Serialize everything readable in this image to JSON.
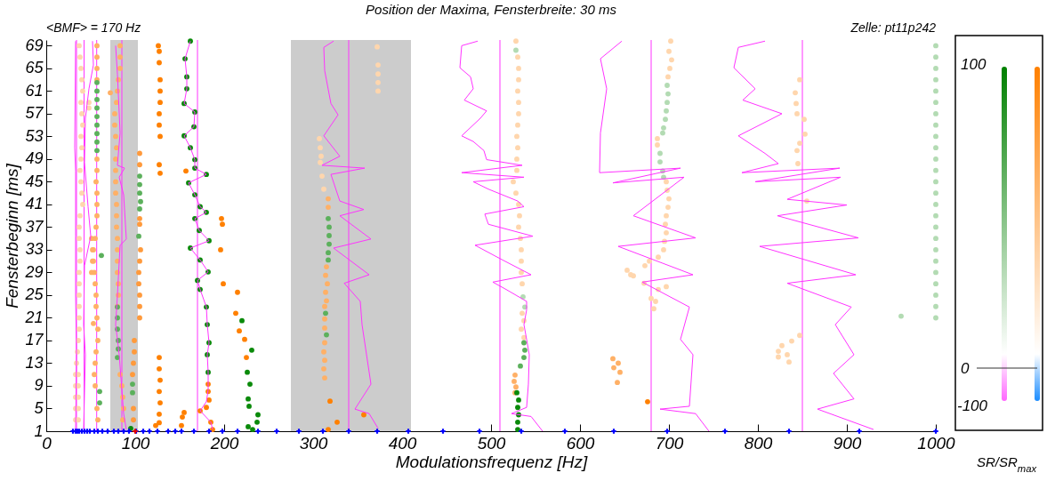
{
  "chart_data": {
    "type": "scatter",
    "title": "Position der Maxima, Fensterbreite: 30 ms",
    "xlabel": "Modulationsfrequenz [Hz]",
    "ylabel": "Fensterbeginn [ms]",
    "annotations": [
      "<BMF> = 170 Hz",
      "Zelle: pt11p242",
      "100",
      "0",
      "-100",
      "SR/SR$_{max}$"
    ],
    "xlim": [
      0,
      1000
    ],
    "ylim": [
      1,
      70
    ],
    "xticks": [
      0,
      100,
      200,
      300,
      400,
      500,
      600,
      700,
      800,
      900,
      1000
    ],
    "yticks": [
      1,
      5,
      9,
      13,
      17,
      21,
      25,
      29,
      33,
      37,
      41,
      45,
      49,
      53,
      57,
      61,
      65,
      69
    ],
    "bands": [
      {
        "axis": "x",
        "from": 72,
        "to": 103,
        "color": "#cccccc"
      },
      {
        "axis": "x",
        "from": 275,
        "to": 410,
        "color": "#cccccc"
      }
    ],
    "ref_lines": [
      {
        "axis": "x",
        "value": 34,
        "color": "#ff33ff"
      },
      {
        "axis": "x",
        "value": 42.5,
        "color": "#ff33ff"
      },
      {
        "axis": "x",
        "value": 56.7,
        "color": "#ff33ff"
      },
      {
        "axis": "x",
        "value": 85,
        "color": "#ff33ff"
      },
      {
        "axis": "x",
        "value": 170,
        "color": "#ff33ff"
      },
      {
        "axis": "x",
        "value": 340,
        "color": "#ff33ff"
      },
      {
        "axis": "x",
        "value": 510,
        "color": "#ff33ff"
      },
      {
        "axis": "x",
        "value": 680,
        "color": "#ff33ff"
      },
      {
        "axis": "x",
        "value": 850,
        "color": "#ff33ff"
      }
    ],
    "series": [
      {
        "marker": "circle",
        "color": "#ffd6ad",
        "x": [
          37,
          38,
          39,
          40,
          41,
          39,
          40,
          41,
          39,
          40,
          39,
          38,
          39,
          40,
          41,
          38,
          37,
          37,
          38,
          38,
          37,
          37,
          37,
          37,
          37,
          37,
          36,
          35,
          34,
          33,
          33,
          33,
          33,
          33,
          36,
          36,
          36,
          36,
          36,
          48,
          48,
          307,
          308,
          309,
          308,
          310,
          312,
          372,
          373,
          373,
          373,
          373,
          528,
          530,
          531,
          531,
          530,
          531,
          531,
          530,
          529,
          530,
          529,
          529,
          525,
          528,
          531,
          532,
          531,
          533,
          534,
          534,
          534,
          535,
          535,
          537,
          534,
          537,
          702,
          700,
          703,
          701,
          699,
          687,
          687,
          697,
          698,
          700,
          699,
          697,
          696,
          697,
          695,
          694,
          688,
          678,
          673,
          653,
          657,
          660,
          672,
          697,
          688,
          680,
          685,
          683,
          847,
          842,
          843,
          844,
          852,
          853,
          847,
          844,
          845,
          855,
          847,
          838,
          827,
          823,
          833,
          823,
          835
        ],
        "values": [
          69,
          67,
          65,
          63,
          61,
          59,
          57,
          55,
          53,
          51,
          49,
          47,
          45,
          43,
          41,
          39,
          37,
          35,
          33,
          31,
          29,
          27,
          25,
          23,
          21,
          19,
          17,
          15,
          13,
          11,
          9,
          7,
          5,
          3,
          11,
          9,
          7,
          5,
          3,
          59,
          58,
          52.6,
          51,
          49.5,
          48.4,
          46,
          43.7,
          68.8,
          65.6,
          64,
          62.5,
          61,
          69.8,
          67,
          65,
          63,
          61,
          59,
          57,
          55,
          53,
          51,
          49,
          47,
          45,
          43,
          41,
          39,
          37,
          35,
          33,
          31,
          29,
          27,
          21.8,
          20.5,
          19,
          17.5,
          69.8,
          68,
          66.5,
          65,
          63.5,
          52.6,
          51.5,
          45,
          43.5,
          42,
          40.5,
          39,
          37.5,
          36,
          34.5,
          33,
          31.7,
          31,
          30.2,
          29.4,
          28.6,
          28.4,
          27.1,
          26.5,
          26,
          24.4,
          23.9,
          22.6,
          63,
          60.7,
          58.8,
          57,
          56,
          53.4,
          51.8,
          50.5,
          48.2,
          41.6,
          17.9,
          16.9,
          16.1,
          15.1,
          14.5,
          14.1,
          13.2
        ]
      },
      {
        "marker": "circle",
        "color": "#ffb066",
        "x": [
          51,
          52,
          52,
          51,
          53,
          57,
          57,
          57,
          57,
          57,
          57,
          56,
          57,
          57,
          57,
          56,
          55,
          53,
          53,
          54,
          55,
          56,
          56,
          57,
          58,
          58,
          56,
          55,
          54,
          55,
          57,
          58,
          83,
          83,
          83,
          81,
          80,
          79,
          77,
          77,
          78,
          79,
          78,
          78,
          78,
          78,
          79,
          79,
          79,
          80,
          80,
          80,
          80,
          81,
          81,
          80,
          83,
          85,
          86,
          87,
          86,
          72,
          317,
          317,
          315,
          314,
          316,
          314,
          315,
          313,
          313,
          313,
          313,
          312,
          313,
          312,
          313,
          527,
          526,
          528,
          527,
          637,
          643,
          638,
          645,
          642
        ],
        "values": [
          35,
          33,
          31,
          29,
          20,
          69,
          67,
          65,
          63,
          49,
          47,
          45,
          43,
          41,
          39,
          37,
          35,
          33,
          31,
          29,
          27,
          25,
          23,
          21,
          19,
          17,
          15,
          13,
          11,
          9,
          5,
          3,
          69,
          67,
          65,
          63,
          61,
          59,
          57,
          55,
          53,
          51,
          49,
          47,
          45,
          43,
          41,
          39,
          37,
          35,
          33,
          31,
          29,
          27,
          25,
          23,
          11,
          9,
          7,
          5,
          3,
          60.7,
          42,
          40.5,
          30,
          28.5,
          27,
          25.5,
          24,
          23,
          20.8,
          19.2,
          16.6,
          15,
          13.5,
          12,
          10.4,
          10.9,
          9.8,
          8.8,
          7.8,
          13.8,
          13,
          12.2,
          11.4,
          9.6
        ]
      },
      {
        "marker": "circle",
        "color": "#ff9a3c",
        "x": [
          105,
          105,
          105,
          105,
          106,
          105,
          104,
          104,
          105,
          105,
          105,
          99,
          99,
          98,
          97,
          98,
          98
        ],
        "values": [
          50,
          48,
          38.5,
          37.5,
          33,
          31,
          29,
          27,
          25,
          23,
          21,
          17,
          15,
          13,
          11,
          5,
          3
        ]
      },
      {
        "marker": "circle",
        "color": "#ff8000",
        "x": [
          126,
          127,
          127,
          128,
          128,
          128,
          127,
          127,
          128,
          127,
          128,
          127,
          127,
          128,
          127,
          128,
          127,
          127,
          123,
          153,
          152,
          155,
          157,
          182,
          182,
          183,
          180,
          173,
          185,
          187,
          197,
          198,
          196,
          199,
          215,
          213,
          217,
          223,
          225,
          319,
          357,
          327,
          317,
          676
        ],
        "values": [
          69,
          68,
          66,
          63,
          61,
          59,
          57,
          55,
          53,
          48,
          46.5,
          14,
          12,
          10,
          8,
          6,
          4,
          2.5,
          2,
          3.5,
          2,
          4.3,
          46.9,
          9.3,
          8,
          6.5,
          5.2,
          4.6,
          2.6,
          1.3,
          38.5,
          37.5,
          33,
          27,
          25.5,
          21.8,
          18.7,
          17.2,
          14,
          6.3,
          3.9,
          2.6,
          1.3,
          6.2
        ]
      },
      {
        "marker": "circle",
        "color": "#b3dbb3",
        "x": [
          536,
          538,
          528,
          698,
          699,
          698,
          697,
          696,
          694,
          693,
          690,
          690,
          693,
          694,
          961,
          1000,
          1000,
          1000,
          1000,
          1000,
          1000,
          1000,
          1000,
          1000,
          1000,
          1000,
          1000,
          1000,
          1000,
          1000,
          1000,
          1000,
          1000,
          1000,
          1000,
          1000,
          1000,
          1000,
          1000,
          1000
        ],
        "values": [
          24.7,
          22.9,
          68.2,
          62,
          60.5,
          59,
          57.5,
          56,
          54.5,
          53.6,
          50,
          48.5,
          46.9,
          45.8,
          21.3,
          21,
          23,
          25,
          27,
          29,
          31,
          33,
          35,
          37,
          39,
          41,
          43,
          45,
          47,
          49,
          51,
          53,
          55,
          57,
          59,
          61,
          63,
          65,
          67,
          69
        ]
      },
      {
        "marker": "circle",
        "color": "#5cb05c",
        "x": [
          533,
          537,
          538,
          537,
          57,
          57,
          57,
          57,
          57,
          57,
          57,
          57,
          57,
          60,
          60,
          62,
          80,
          80,
          80,
          81,
          81,
          80,
          105,
          105,
          105,
          106,
          105,
          104,
          97,
          97,
          317,
          318,
          318,
          318,
          317,
          317,
          314,
          315
        ],
        "values": [
          12.5,
          16.6,
          15.3,
          14,
          62.5,
          61,
          59.5,
          58,
          56.5,
          55,
          53.5,
          52,
          50.5,
          8,
          6,
          32,
          22.9,
          21,
          19,
          17,
          15.5,
          14,
          46,
          44.5,
          43,
          41.5,
          40.2,
          35.4,
          9.3,
          7.8,
          38.5,
          37,
          35.5,
          34,
          32.5,
          31.2,
          21.8,
          18
        ]
      },
      {
        "marker": "circle",
        "color": "#0a8a0a",
        "x": [
          162,
          156,
          158,
          158,
          155,
          167,
          166,
          155,
          162,
          167,
          167,
          180,
          160,
          167,
          173,
          180,
          167,
          172,
          183,
          162,
          173,
          182,
          170,
          173,
          180,
          181,
          183,
          181,
          182,
          220,
          231,
          226,
          229,
          227,
          228,
          238,
          237,
          227,
          232,
          529,
          531,
          530,
          531,
          530,
          530,
          95
        ],
        "values": [
          69.8,
          66.7,
          63.5,
          61.4,
          58.8,
          57.3,
          54.7,
          53.1,
          51,
          48.9,
          47.4,
          46.3,
          44.8,
          42.7,
          40.6,
          39.6,
          38.5,
          36.4,
          34.6,
          33.3,
          31.2,
          29.1,
          27.6,
          26,
          22.9,
          19.8,
          16.6,
          14.5,
          11.4,
          20.5,
          15.3,
          11.4,
          9.3,
          6.7,
          5.4,
          3.9,
          2.6,
          1.8,
          1.3,
          7.8,
          6.5,
          5.2,
          3.9,
          2.6,
          1.3,
          1.5
        ]
      },
      {
        "type": "line",
        "color": "#ff33ff",
        "x": [
          33,
          32,
          33,
          33,
          33,
          34,
          33
        ],
        "values": [
          69.8,
          51,
          46.9,
          35.4,
          25,
          14.5,
          1.3
        ]
      },
      {
        "type": "line",
        "color": "#ff33ff",
        "x": [
          52,
          53,
          48,
          44,
          43,
          47,
          50,
          43,
          42,
          44,
          42
        ],
        "values": [
          69.8,
          65.6,
          61.4,
          56.2,
          48.4,
          40.6,
          35.4,
          30.2,
          19.8,
          14.5,
          1.3
        ]
      },
      {
        "type": "line",
        "color": "#ff33ff",
        "x": [
          78,
          80,
          83,
          80,
          88,
          82,
          87,
          90,
          83,
          80,
          78,
          82,
          87,
          90
        ],
        "values": [
          69,
          64,
          53.6,
          47.9,
          47.4,
          45.8,
          42.7,
          34.9,
          33.8,
          25,
          19.8,
          14.5,
          4.1,
          1.3
        ]
      },
      {
        "type": "line",
        "color": "#ff33ff",
        "x": [
          162,
          156,
          158,
          158,
          155,
          167,
          166,
          155,
          162,
          167,
          167,
          180,
          160,
          167,
          173,
          180,
          167,
          172,
          183,
          162,
          173,
          182,
          170,
          173,
          180,
          181,
          183,
          181,
          182,
          182,
          180,
          173,
          185,
          187
        ],
        "values": [
          69.8,
          66.7,
          63.5,
          61.4,
          58.8,
          57.3,
          54.7,
          53.1,
          51,
          48.9,
          47.4,
          46.3,
          44.8,
          42.7,
          40.6,
          39.6,
          38.5,
          36.4,
          34.6,
          33.3,
          31.2,
          29.1,
          27.6,
          26,
          22.9,
          19.8,
          16.6,
          14.5,
          11.4,
          8.3,
          6.2,
          4.6,
          2.6,
          1.3
        ]
      },
      {
        "type": "line",
        "color": "#ff33ff",
        "x": [
          323,
          312,
          313,
          320,
          328,
          312,
          330,
          310,
          358,
          320,
          330,
          357,
          330,
          365,
          323,
          363,
          335,
          353,
          355,
          365,
          347,
          363,
          373
        ],
        "values": [
          69.8,
          68.7,
          64.6,
          58.8,
          56.8,
          53.1,
          49.5,
          47.9,
          47.4,
          46.3,
          41.6,
          40.1,
          39,
          34.9,
          33.3,
          28.6,
          27.1,
          23.9,
          19.8,
          9.3,
          4.9,
          4.1,
          1.5
        ]
      },
      {
        "type": "line",
        "color": "#ff33ff",
        "x": [
          485,
          467,
          465,
          477,
          480,
          470,
          495,
          488,
          467,
          480,
          492,
          495,
          535,
          467,
          537,
          480,
          497,
          530,
          537,
          493,
          497,
          547,
          482,
          513,
          545,
          502,
          517,
          540,
          540,
          537,
          540,
          543,
          542,
          540,
          523,
          545,
          558
        ],
        "values": [
          69.8,
          69,
          65.1,
          63.5,
          61.4,
          59.4,
          57.5,
          56.2,
          53.1,
          52.1,
          50.5,
          48.9,
          47.9,
          46.6,
          45.8,
          45,
          43.7,
          41.6,
          40.6,
          39.3,
          37.5,
          35.4,
          33.8,
          31.2,
          28.6,
          27.3,
          26,
          23.9,
          22.4,
          19.8,
          17.2,
          14.5,
          9.3,
          5.2,
          4.1,
          3.6,
          1
        ]
      },
      {
        "type": "line",
        "color": "#ff33ff",
        "x": [
          647,
          623,
          630,
          623,
          622,
          713,
          637,
          717,
          660,
          730,
          643,
          727,
          670,
          723,
          713,
          727,
          723,
          690,
          730,
          745
        ],
        "values": [
          69.8,
          66.7,
          61.4,
          53.6,
          46.6,
          47.4,
          44.8,
          45.8,
          39,
          35.1,
          33.6,
          28.6,
          27.3,
          22.9,
          17.2,
          14.5,
          5.4,
          4.9,
          4.1,
          1
        ]
      },
      {
        "type": "line",
        "color": "#ff33ff",
        "x": [
          808,
          778,
          773,
          797,
          783,
          827,
          778,
          808,
          823,
          782,
          892,
          797,
          893,
          833,
          900,
          822,
          913,
          802,
          910,
          833,
          905,
          887,
          908,
          885,
          908,
          867,
          930
        ],
        "values": [
          69.8,
          68.7,
          65.1,
          61.4,
          59.4,
          57,
          53.1,
          50,
          48.2,
          46.6,
          47.4,
          45,
          45.8,
          41.9,
          40.9,
          39,
          35.1,
          33.6,
          28.6,
          27.1,
          22.9,
          19.8,
          14.5,
          11.2,
          6.7,
          4.9,
          1.3
        ]
      },
      {
        "marker": "cross",
        "color": "#0000ff",
        "x": [
          30,
          33,
          35,
          37,
          40,
          43,
          46,
          49,
          54,
          58,
          63,
          69,
          76,
          81,
          87,
          93,
          101,
          109,
          116,
          125,
          137,
          145,
          152,
          166,
          183,
          198,
          215,
          238,
          259,
          284,
          311,
          340,
          372,
          407,
          446,
          487,
          534,
          583,
          638,
          698,
          763,
          835,
          914,
          1000
        ],
        "values": [
          1,
          1,
          1,
          1,
          1,
          1,
          1,
          1,
          1,
          1,
          1,
          1,
          1,
          1,
          1,
          1,
          1,
          1,
          1,
          1,
          1,
          1,
          1,
          1,
          1,
          1,
          1,
          1,
          1,
          1,
          1,
          1,
          1,
          1,
          1,
          1,
          1,
          1,
          1,
          1,
          1,
          1,
          1,
          1
        ]
      },
      {
        "marker": "cross",
        "color": "#e00000",
        "x": [
          100
        ],
        "values": [
          1
        ]
      }
    ]
  }
}
